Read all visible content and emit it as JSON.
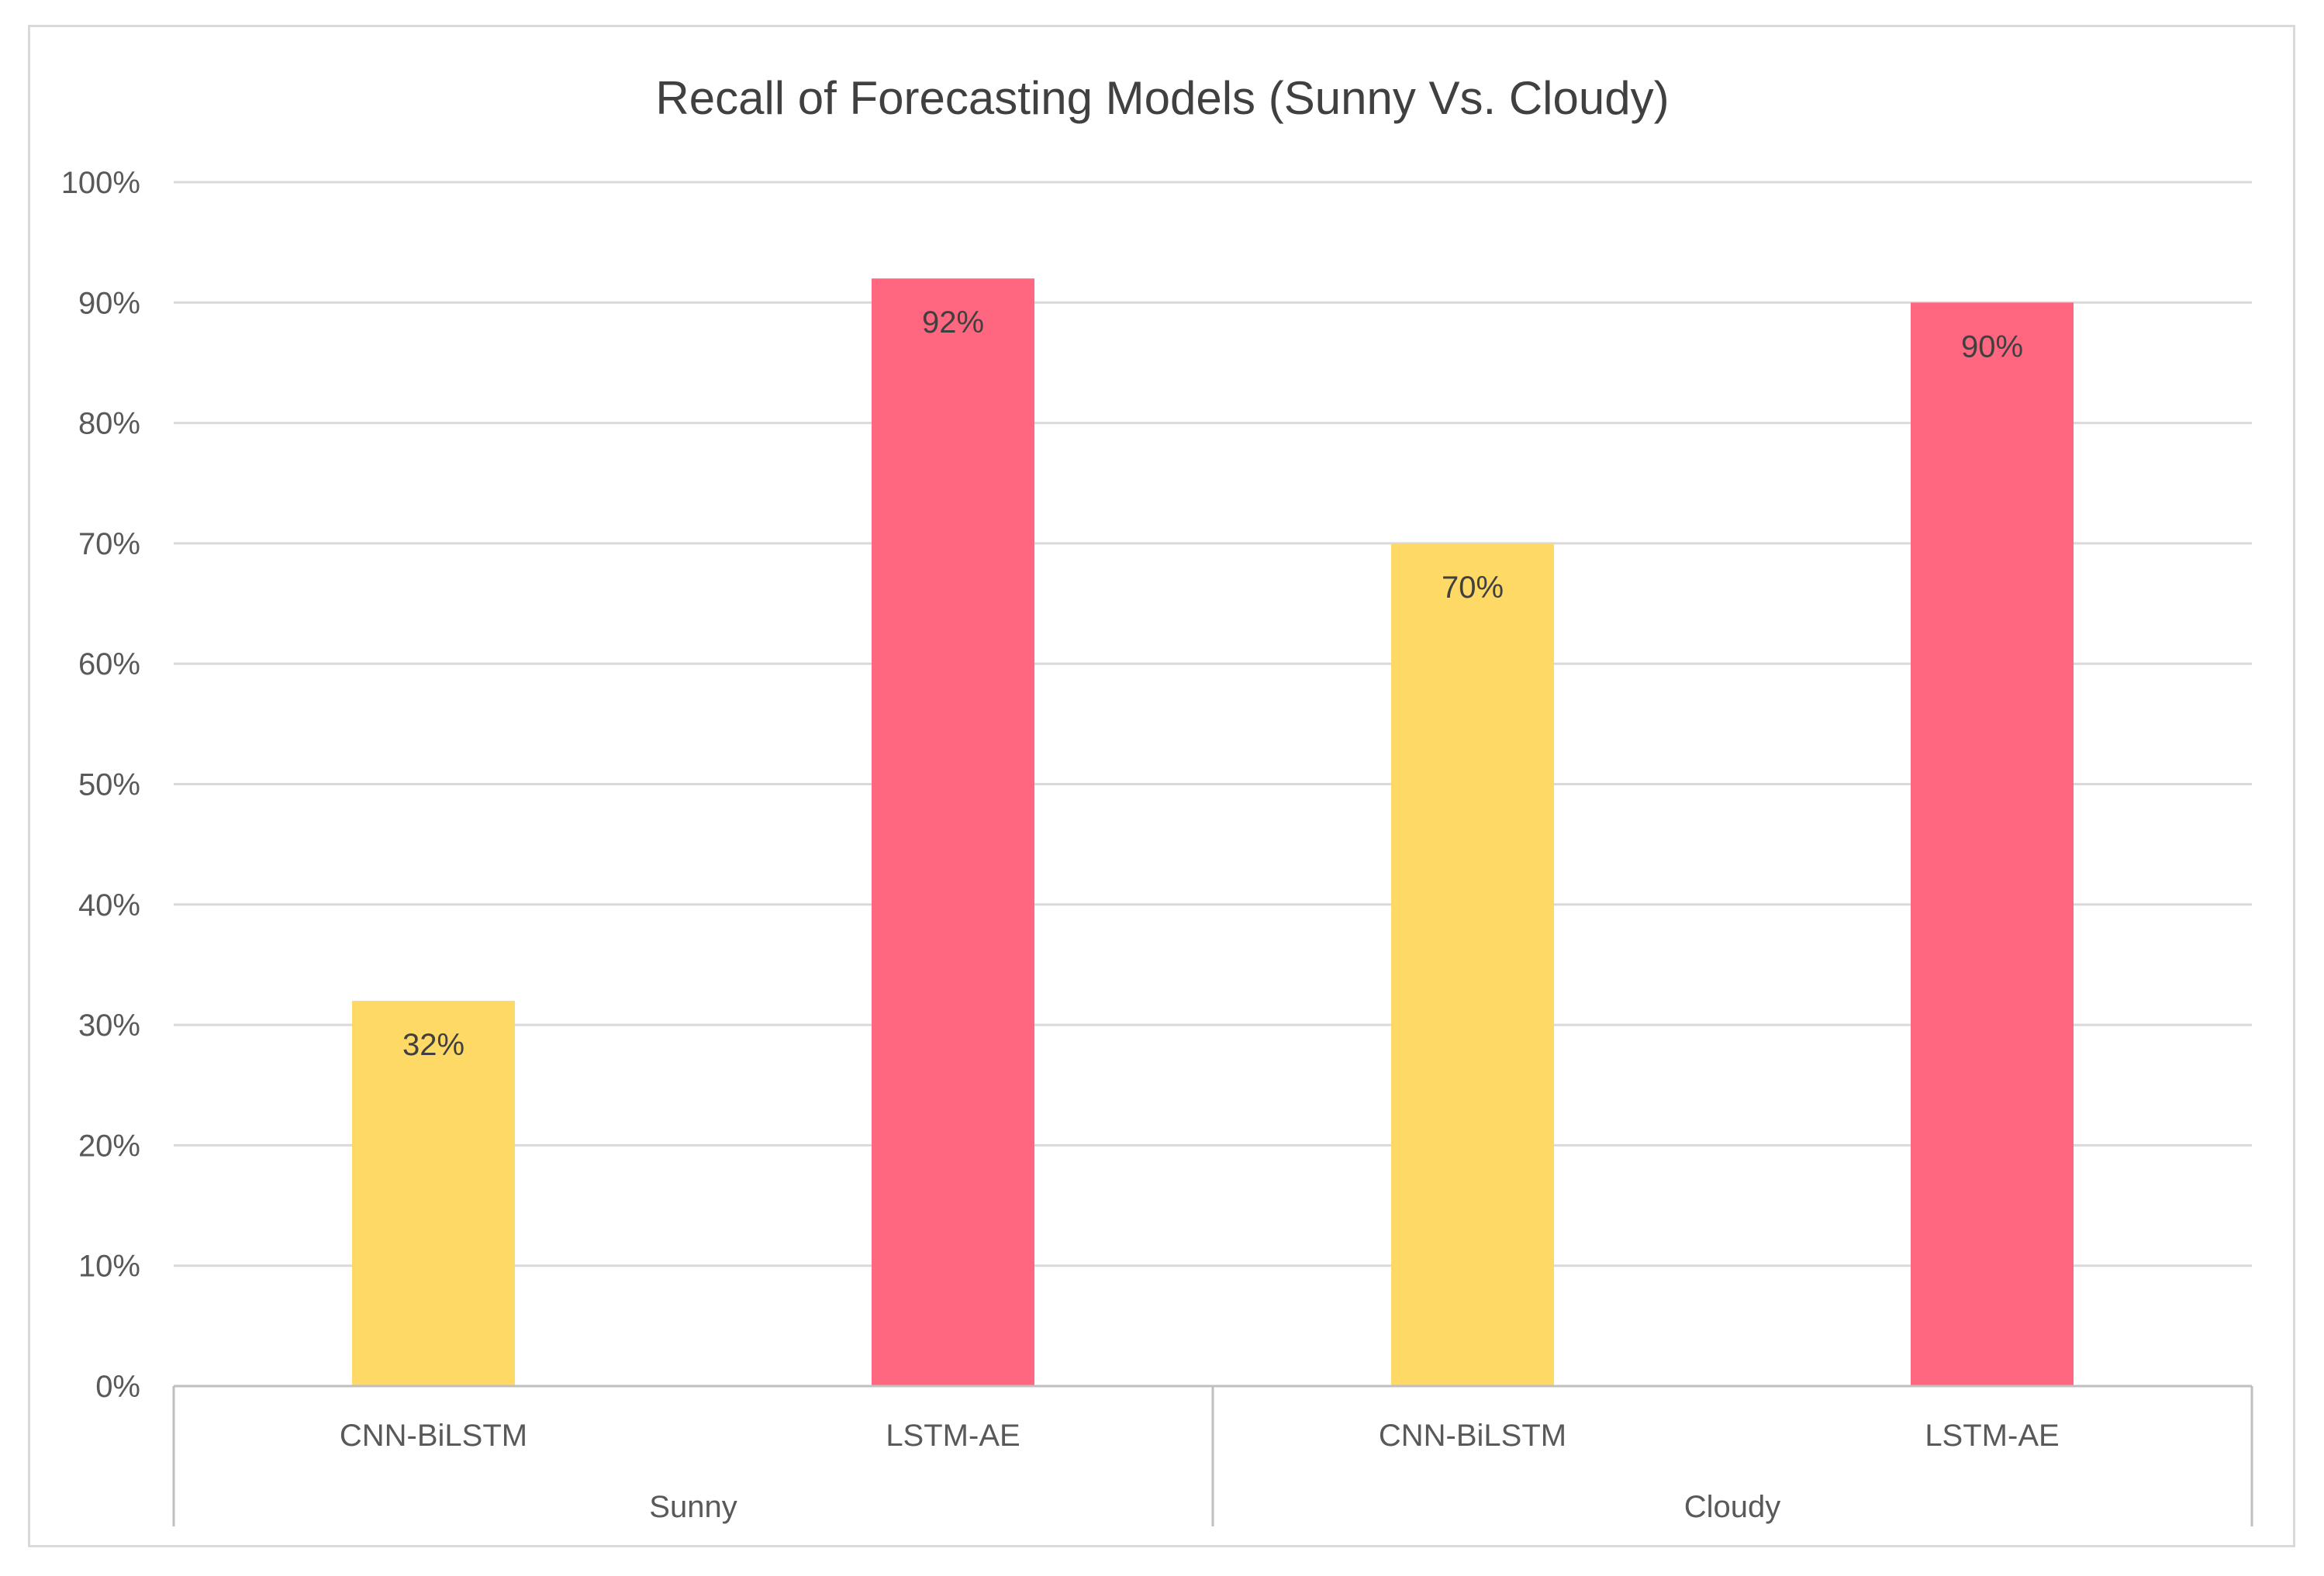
{
  "chart_data": {
    "type": "bar",
    "title": "Recall of Forecasting Models (Sunny Vs. Cloudy)",
    "xlabel": "",
    "ylabel": "",
    "ylim": [
      0,
      100
    ],
    "yticks": [
      "0%",
      "10%",
      "20%",
      "30%",
      "40%",
      "50%",
      "60%",
      "70%",
      "80%",
      "90%",
      "100%"
    ],
    "grid": true,
    "legend": "none",
    "groups": [
      {
        "name": "Sunny",
        "bars": [
          {
            "category": "CNN-BiLSTM",
            "value": 32,
            "label": "32%",
            "color": "#FFD966"
          },
          {
            "category": "LSTM-AE",
            "value": 92,
            "label": "92%",
            "color": "#FF6680"
          }
        ]
      },
      {
        "name": "Cloudy",
        "bars": [
          {
            "category": "CNN-BiLSTM",
            "value": 70,
            "label": "70%",
            "color": "#FFD966"
          },
          {
            "category": "LSTM-AE",
            "value": 90,
            "label": "90%",
            "color": "#FF6680"
          }
        ]
      }
    ]
  },
  "colors": {
    "text": "#595959",
    "title": "#404040",
    "gridline": "#d9d9d9",
    "axis": "#bfbfbf",
    "label": "#404040"
  }
}
